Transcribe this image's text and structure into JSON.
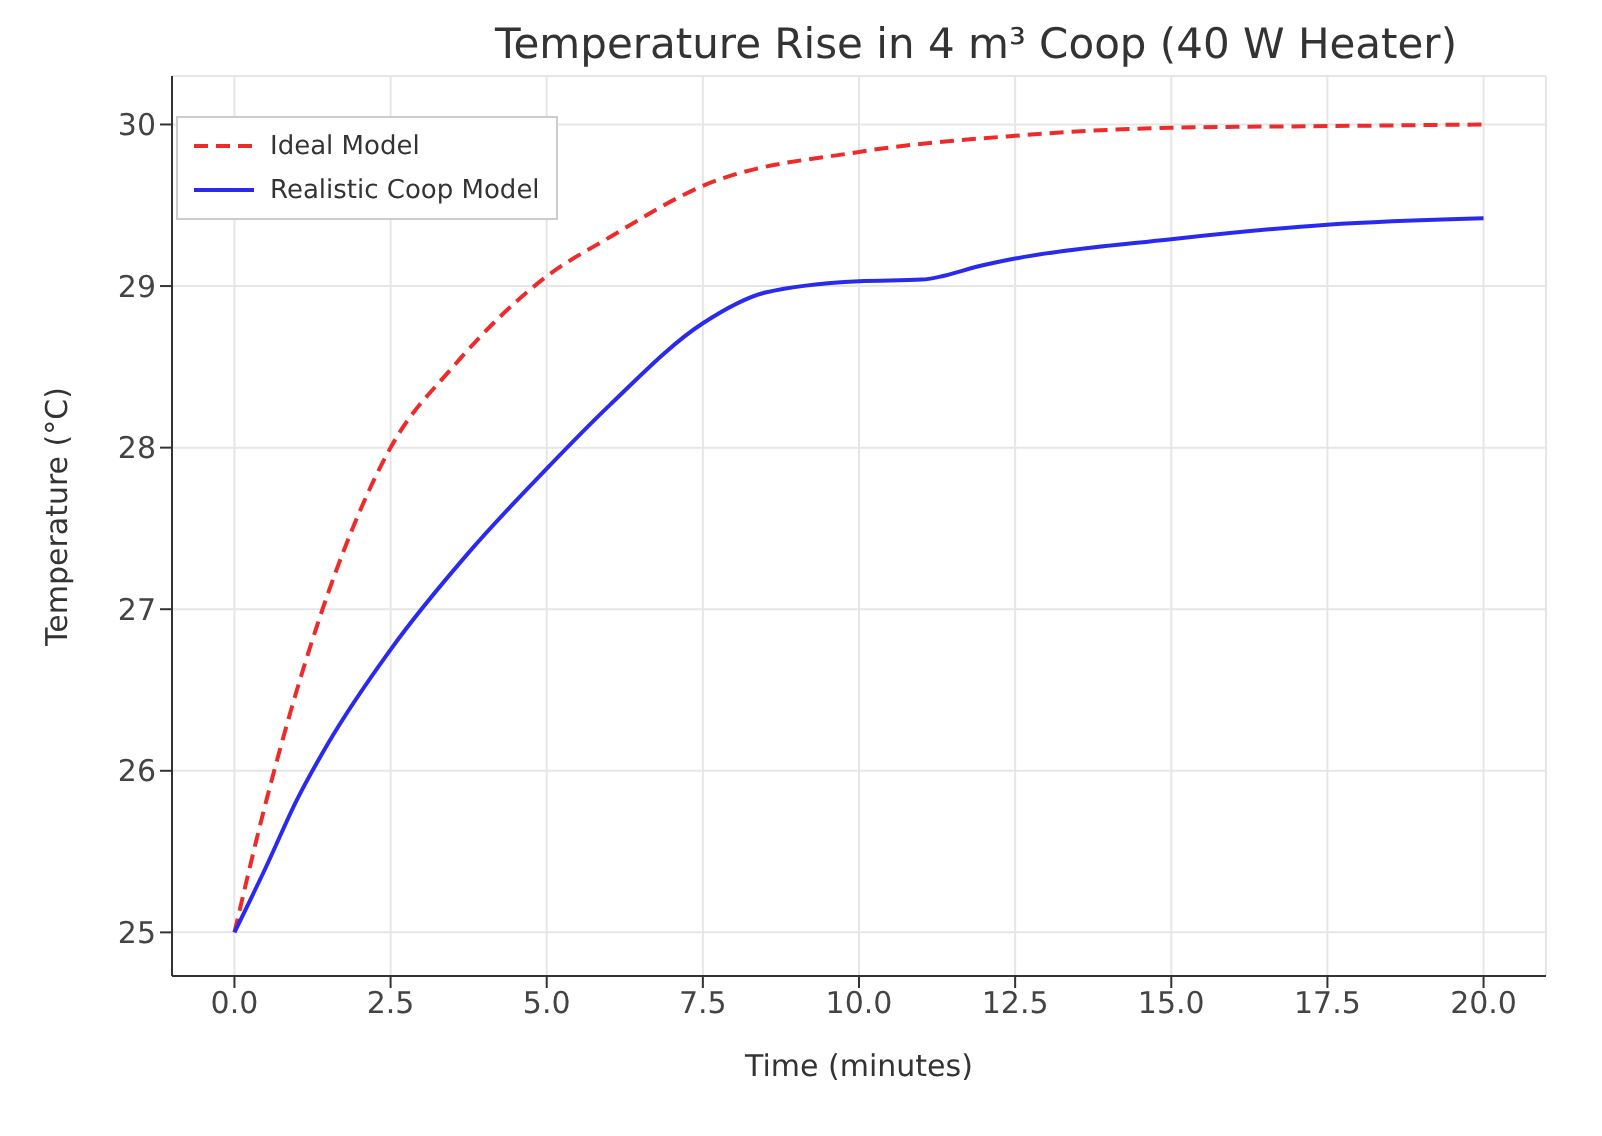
{
  "chart_data": {
    "type": "line",
    "title": "Temperature Rise in 4 m³ Coop (40 W Heater)",
    "xlabel": "Time (minutes)",
    "ylabel": "Temperature (°C)",
    "xlim": [
      -1,
      21
    ],
    "xticks": [
      {
        "value": 0,
        "label": "0.0"
      },
      {
        "value": 2.5,
        "label": "2.5"
      },
      {
        "value": 5,
        "label": "5.0"
      },
      {
        "value": 7.5,
        "label": "7.5"
      },
      {
        "value": 10,
        "label": "10.0"
      },
      {
        "value": 12.5,
        "label": "12.5"
      },
      {
        "value": 15,
        "label": "15.0"
      },
      {
        "value": 17.5,
        "label": "17.5"
      },
      {
        "value": 20,
        "label": "20.0"
      }
    ],
    "ylim": [
      24.73,
      30.3
    ],
    "yticks": [
      25,
      26,
      27,
      28,
      29,
      30
    ],
    "grid": true,
    "legend": "top left",
    "series": [
      {
        "name": "Ideal Model",
        "color": "#ee2a2a",
        "line_style": "dashed",
        "x": [
          0,
          0.5,
          1,
          1.5,
          2.5,
          3.5,
          5,
          6,
          7.5,
          10,
          12.5,
          15,
          17.5,
          20
        ],
        "values": [
          25,
          25.8,
          26.5,
          27.1,
          28.0,
          28.5,
          29.06,
          29.3,
          29.62,
          29.83,
          29.93,
          29.98,
          29.99,
          30
        ]
      },
      {
        "name": "Realistic Coop Model",
        "color": "#2a2aee",
        "line_style": "solid",
        "x": [
          0,
          0.5,
          1,
          1.5,
          2.5,
          3.75,
          5,
          6,
          7.5,
          8.5,
          10,
          11,
          12,
          12.5,
          15,
          17.5,
          20
        ],
        "values": [
          25,
          25.4,
          25.82,
          26.17,
          26.75,
          27.35,
          27.87,
          28.26,
          28.77,
          28.96,
          29.03,
          29.04,
          29.13,
          29.17,
          29.29,
          29.38,
          29.42
        ]
      }
    ]
  }
}
